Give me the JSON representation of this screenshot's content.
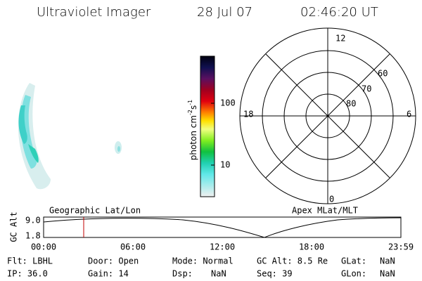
{
  "header": {
    "title": "Ultraviolet Imager",
    "date": "28 Jul 07",
    "time": "02:46:20 UT"
  },
  "colorbar": {
    "label": [
      "photon cm",
      "-2",
      "s",
      "-1"
    ],
    "ticks": [
      "100",
      "10"
    ]
  },
  "polar": {
    "labels": [
      "12",
      "18",
      "6",
      "0",
      "60",
      "70",
      "80"
    ]
  },
  "timeline": {
    "left_title": "Geographic Lat/Lon",
    "right_title": "Apex MLat/MLT",
    "axis_label": "GC Alt",
    "y_labels": [
      "9.0",
      "1.8"
    ],
    "x_labels": [
      "00:00",
      "06:00",
      "12:00",
      "18:00",
      "23:59"
    ]
  },
  "info": [
    [
      "Flt: LBHL",
      "Door: Open",
      "Mode: Normal",
      "GC Alt: 8.5 Re",
      "GLat:",
      "NaN"
    ],
    [
      "IP: 36.0",
      "Gain: 14",
      "Dsp:",
      "NaN",
      "Seq: 39",
      "GLon:",
      "NaN"
    ]
  ]
}
